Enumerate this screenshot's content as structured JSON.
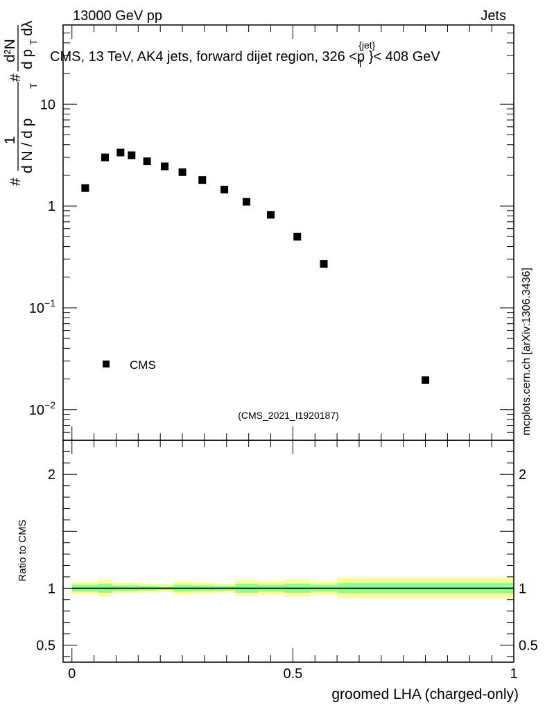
{
  "header": {
    "left": "13000 GeV pp",
    "right": "Jets"
  },
  "side_note": "mcplots.cern.ch [arXiv:1306.3436]",
  "chart_data": [
    {
      "type": "scatter",
      "title_parts": {
        "main": "CMS, 13 TeV, AK4 jets, forward dijet region, 326 <p",
        "sup": "{jet}",
        "sub": "T",
        "tail": "}< 408 GeV"
      },
      "ylabel_parts": {
        "hash": "#",
        "one": "1",
        "dN": "d N / d p",
        "T": "T",
        "d2N": "d²N",
        "dpT": "d p",
        "dlambda": "dλ"
      },
      "yscale": "log",
      "ylim": [
        0.005,
        60
      ],
      "xlim": [
        -0.02,
        1.0
      ],
      "y_ticks": [
        {
          "value": 0.01,
          "label": "10",
          "exp": "−2"
        },
        {
          "value": 0.1,
          "label": "10",
          "exp": "−1"
        },
        {
          "value": 1,
          "label": "1",
          "exp": ""
        },
        {
          "value": 10,
          "label": "10",
          "exp": ""
        }
      ],
      "legend": {
        "label": "CMS",
        "position": "bottom-left"
      },
      "watermark": "(CMS_2021_I1920187)",
      "series": [
        {
          "name": "CMS",
          "marker": "square",
          "x": [
            0.03,
            0.075,
            0.11,
            0.135,
            0.17,
            0.21,
            0.25,
            0.295,
            0.345,
            0.395,
            0.45,
            0.51,
            0.57,
            0.8
          ],
          "y": [
            1.5,
            3.0,
            3.35,
            3.15,
            2.75,
            2.45,
            2.15,
            1.8,
            1.45,
            1.1,
            0.82,
            0.5,
            0.27,
            0.0195
          ]
        }
      ]
    },
    {
      "type": "area",
      "ylabel": "Ratio to CMS",
      "xlabel": "groomed LHA (charged-only)",
      "ylim": [
        0.35,
        2.3
      ],
      "xlim": [
        -0.02,
        1.0
      ],
      "y_ticks": [
        {
          "value": 0.5,
          "label": "0.5"
        },
        {
          "value": 1,
          "label": "1"
        },
        {
          "value": 2,
          "label": "2"
        }
      ],
      "x_ticks": [
        {
          "value": 0,
          "label": "0"
        },
        {
          "value": 0.5,
          "label": "0.5"
        },
        {
          "value": 1,
          "label": "1"
        }
      ],
      "colors": {
        "yellow": "#ffff99",
        "green": "#8fff8f"
      },
      "bins": [
        {
          "lo": 0.0,
          "hi": 0.06,
          "y_lo": 0.945,
          "y_hi": 1.055,
          "g_lo": 0.97,
          "g_hi": 1.03
        },
        {
          "lo": 0.06,
          "hi": 0.09,
          "y_lo": 0.925,
          "y_hi": 1.075,
          "g_lo": 0.96,
          "g_hi": 1.04
        },
        {
          "lo": 0.09,
          "hi": 0.12,
          "y_lo": 0.955,
          "y_hi": 1.045,
          "g_lo": 0.975,
          "g_hi": 1.025
        },
        {
          "lo": 0.12,
          "hi": 0.15,
          "y_lo": 0.955,
          "y_hi": 1.045,
          "g_lo": 0.975,
          "g_hi": 1.025
        },
        {
          "lo": 0.15,
          "hi": 0.19,
          "y_lo": 0.96,
          "y_hi": 1.04,
          "g_lo": 0.98,
          "g_hi": 1.02
        },
        {
          "lo": 0.19,
          "hi": 0.23,
          "y_lo": 0.965,
          "y_hi": 1.035,
          "g_lo": 0.985,
          "g_hi": 1.015
        },
        {
          "lo": 0.23,
          "hi": 0.27,
          "y_lo": 0.94,
          "y_hi": 1.06,
          "g_lo": 0.97,
          "g_hi": 1.03
        },
        {
          "lo": 0.27,
          "hi": 0.32,
          "y_lo": 0.95,
          "y_hi": 1.05,
          "g_lo": 0.975,
          "g_hi": 1.025
        },
        {
          "lo": 0.32,
          "hi": 0.37,
          "y_lo": 0.96,
          "y_hi": 1.04,
          "g_lo": 0.98,
          "g_hi": 1.02
        },
        {
          "lo": 0.37,
          "hi": 0.42,
          "y_lo": 0.93,
          "y_hi": 1.07,
          "g_lo": 0.96,
          "g_hi": 1.04
        },
        {
          "lo": 0.42,
          "hi": 0.48,
          "y_lo": 0.94,
          "y_hi": 1.06,
          "g_lo": 0.97,
          "g_hi": 1.03
        },
        {
          "lo": 0.48,
          "hi": 0.54,
          "y_lo": 0.925,
          "y_hi": 1.075,
          "g_lo": 0.96,
          "g_hi": 1.04
        },
        {
          "lo": 0.54,
          "hi": 0.6,
          "y_lo": 0.94,
          "y_hi": 1.06,
          "g_lo": 0.97,
          "g_hi": 1.03
        },
        {
          "lo": 0.6,
          "hi": 1.0,
          "y_lo": 0.91,
          "y_hi": 1.09,
          "g_lo": 0.955,
          "g_hi": 1.045
        }
      ]
    }
  ]
}
